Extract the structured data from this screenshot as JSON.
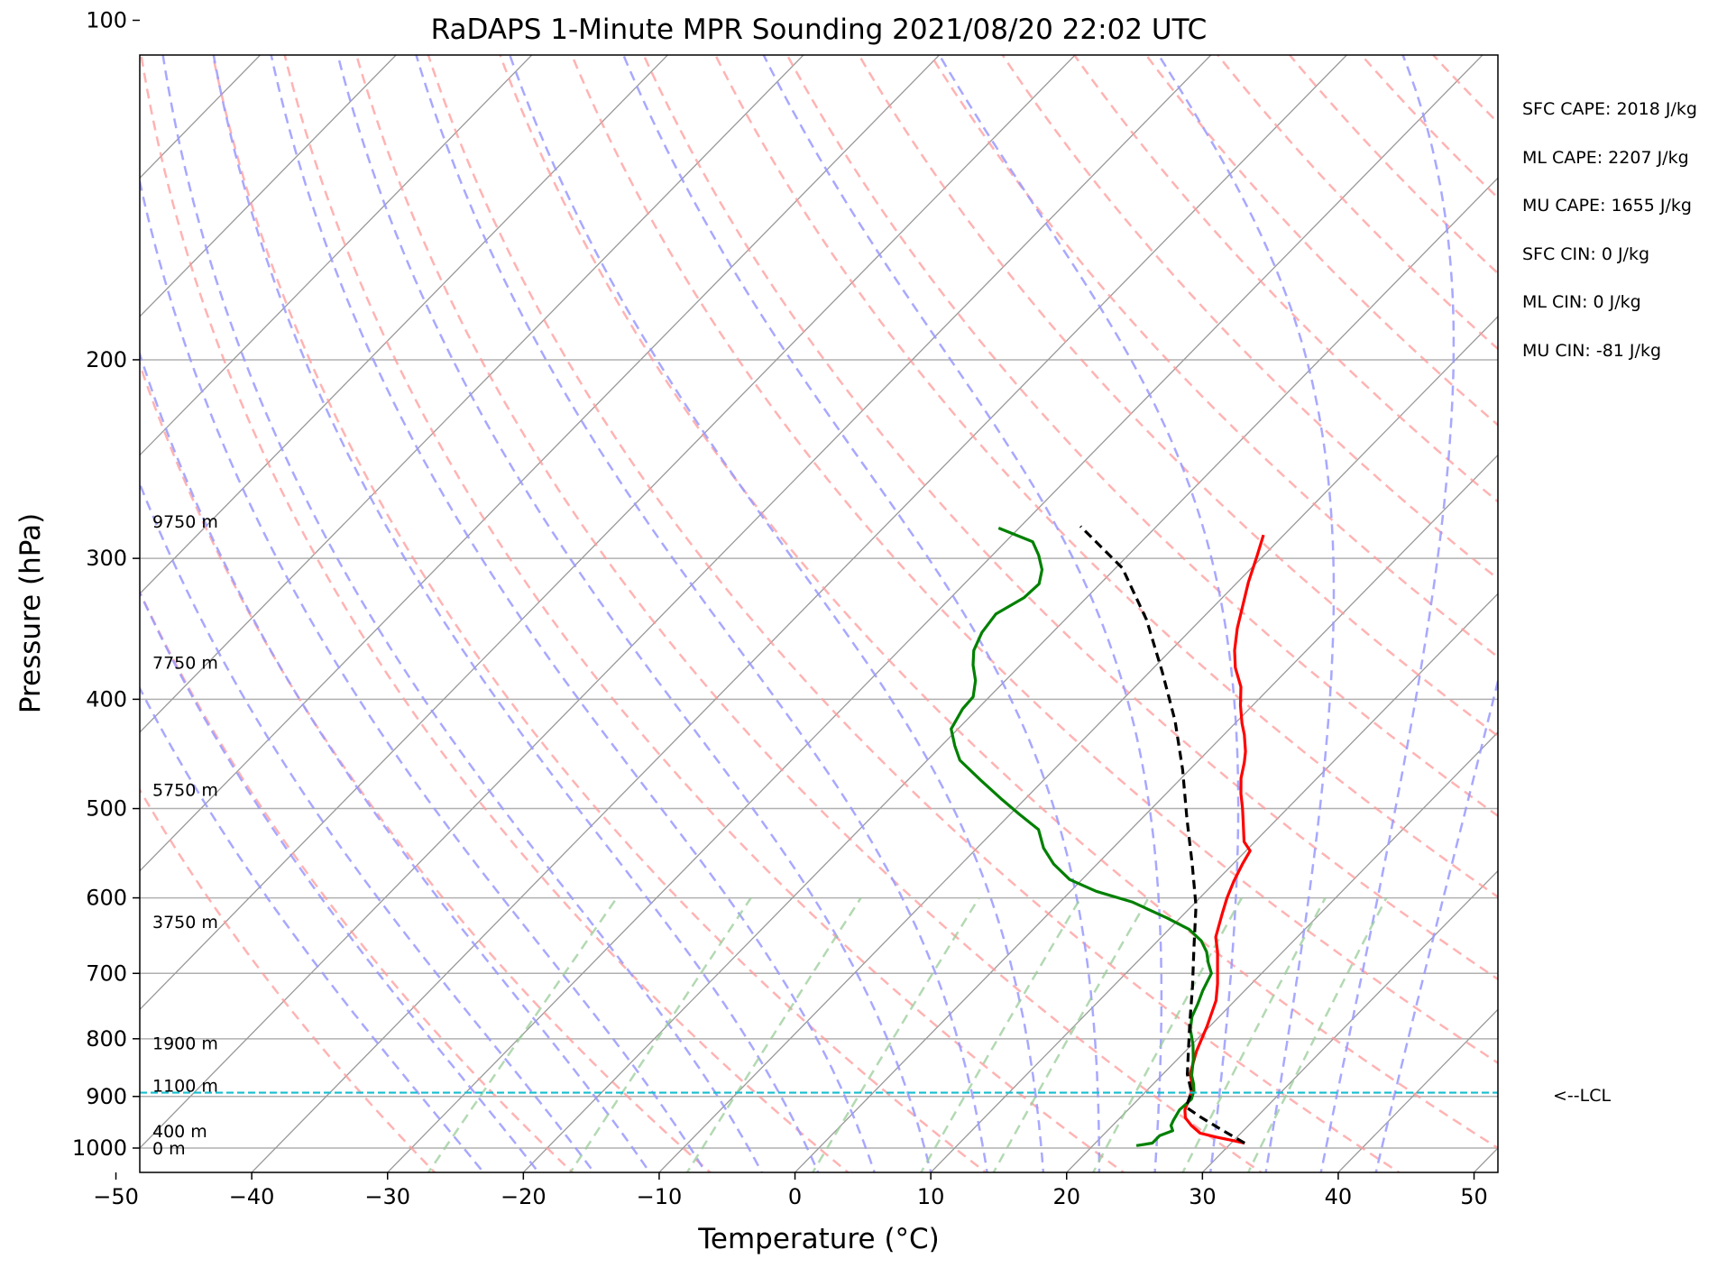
{
  "chart_data": {
    "type": "line",
    "title": "RaDAPS 1-Minute MPR Sounding 2021/08/20 22:02 UTC",
    "xlabel": "Temperature (°C)",
    "ylabel": "Pressure (hPa)",
    "xlim": [
      -50,
      50
    ],
    "ylim": [
      1050,
      100
    ],
    "y_scale": "log",
    "xticks": [
      -50,
      -40,
      -30,
      -20,
      -10,
      0,
      10,
      20,
      30,
      40,
      50
    ],
    "xtick_labels": [
      "−50",
      "−40",
      "−30",
      "−20",
      "−10",
      "0",
      "10",
      "20",
      "30",
      "40",
      "50"
    ],
    "yticks": [
      100,
      200,
      300,
      400,
      500,
      600,
      700,
      800,
      900,
      1000
    ],
    "ytick_labels": [
      "100",
      "200",
      "300",
      "400",
      "500",
      "600",
      "700",
      "800",
      "900",
      "1000"
    ],
    "grid": true,
    "series": [
      {
        "role": "temperature",
        "color": "#ff0000",
        "points": [
          [
            31,
            990
          ],
          [
            30,
            985
          ],
          [
            28.5,
            978
          ],
          [
            27,
            970
          ],
          [
            25.8,
            955
          ],
          [
            24.8,
            940
          ],
          [
            24.2,
            925
          ],
          [
            23.6,
            900
          ],
          [
            23,
            880
          ],
          [
            22,
            860
          ],
          [
            20.8,
            820
          ],
          [
            19.8,
            780
          ],
          [
            18.6,
            740
          ],
          [
            17.5,
            715
          ],
          [
            16.5,
            695
          ],
          [
            15.2,
            670
          ],
          [
            14,
            650
          ],
          [
            12.8,
            620
          ],
          [
            12,
            600
          ],
          [
            11.3,
            580
          ],
          [
            10.7,
            560
          ],
          [
            10.3,
            545
          ],
          [
            9.2,
            535
          ],
          [
            7.8,
            515
          ],
          [
            6.7,
            500
          ],
          [
            5.5,
            485
          ],
          [
            4.4,
            470
          ],
          [
            3.5,
            455
          ],
          [
            2.8,
            445
          ],
          [
            1.5,
            430
          ],
          [
            0.5,
            420
          ],
          [
            -0.9,
            405
          ],
          [
            -2.2,
            390
          ],
          [
            -4,
            375
          ],
          [
            -5.3,
            362
          ],
          [
            -6.7,
            346
          ],
          [
            -7.8,
            332
          ],
          [
            -9.2,
            315
          ],
          [
            -10.5,
            298
          ],
          [
            -11.5,
            286
          ]
        ]
      },
      {
        "role": "dewpoint",
        "color": "#008000",
        "points": [
          [
            23.2,
            995
          ],
          [
            24.2,
            990
          ],
          [
            24.2,
            975
          ],
          [
            24.8,
            965
          ],
          [
            24.3,
            955
          ],
          [
            24.1,
            945
          ],
          [
            23.8,
            925
          ],
          [
            23.9,
            905
          ],
          [
            23.5,
            890
          ],
          [
            23,
            878
          ],
          [
            22.2,
            862
          ],
          [
            21.2,
            835
          ],
          [
            20.1,
            810
          ],
          [
            18.8,
            785
          ],
          [
            18,
            765
          ],
          [
            17.5,
            745
          ],
          [
            16.9,
            725
          ],
          [
            16.3,
            700
          ],
          [
            15.3,
            685
          ],
          [
            14.4,
            670
          ],
          [
            13.2,
            655
          ],
          [
            11.5,
            640
          ],
          [
            9,
            625
          ],
          [
            5.3,
            605
          ],
          [
            1.9,
            592
          ],
          [
            -0.9,
            578
          ],
          [
            -3.2,
            560
          ],
          [
            -5.1,
            542
          ],
          [
            -6.8,
            522
          ],
          [
            -9.3,
            506
          ],
          [
            -11.8,
            490
          ],
          [
            -14.6,
            472
          ],
          [
            -17.6,
            453
          ],
          [
            -19,
            440
          ],
          [
            -20.5,
            425
          ],
          [
            -21.1,
            408
          ],
          [
            -21.2,
            398
          ],
          [
            -22.2,
            385
          ],
          [
            -23.5,
            373
          ],
          [
            -24.5,
            362
          ],
          [
            -25.2,
            349
          ],
          [
            -25.5,
            336
          ],
          [
            -24.6,
            325
          ],
          [
            -24.5,
            316
          ],
          [
            -25.3,
            307
          ],
          [
            -26.6,
            298
          ],
          [
            -28,
            290
          ],
          [
            -31.5,
            282
          ]
        ]
      },
      {
        "role": "parcel profile",
        "color": "#000000",
        "points": [
          [
            31,
            990
          ],
          [
            28.5,
            965
          ],
          [
            26,
            940
          ],
          [
            24.1,
            920
          ],
          [
            23.4,
            892
          ],
          [
            21.8,
            860
          ],
          [
            20.2,
            820
          ],
          [
            18.3,
            775
          ],
          [
            15.9,
            720
          ],
          [
            13.2,
            665
          ],
          [
            10.3,
            610
          ],
          [
            7,
            560
          ],
          [
            3.3,
            510
          ],
          [
            -0.5,
            462
          ],
          [
            -4.6,
            418
          ],
          [
            -9.1,
            378
          ],
          [
            -14,
            340
          ],
          [
            -19.5,
            306
          ],
          [
            -25.6,
            281
          ]
        ]
      },
      {
        "role": "LCL",
        "color": "#17becf",
        "pressure": 893
      }
    ],
    "annotations": {
      "height_labels": [
        {
          "text": "9750 m",
          "p": 278
        },
        {
          "text": "7750 m",
          "p": 371
        },
        {
          "text": "5750 m",
          "p": 481
        },
        {
          "text": "3750 m",
          "p": 630
        },
        {
          "text": "1900 m",
          "p": 807
        },
        {
          "text": "1100 m",
          "p": 880
        },
        {
          "text": "400 m",
          "p": 966
        },
        {
          "text": "0 m",
          "p": 1000
        }
      ],
      "lcl_label": "<--LCL"
    },
    "stats": [
      "SFC CAPE: 2018 J/kg",
      "ML CAPE: 2207 J/kg",
      "MU CAPE: 1655 J/kg",
      "SFC CIN: 0 J/kg",
      "ML CIN: 0 J/kg",
      "MU CIN: -81 J/kg"
    ],
    "reference_lines": {
      "dry_adiabat_color": "#ff9999",
      "moist_adiabat_color": "#9999ff",
      "mixing_ratio_color": "#99cc99",
      "isotherm_color": "#999999"
    }
  }
}
